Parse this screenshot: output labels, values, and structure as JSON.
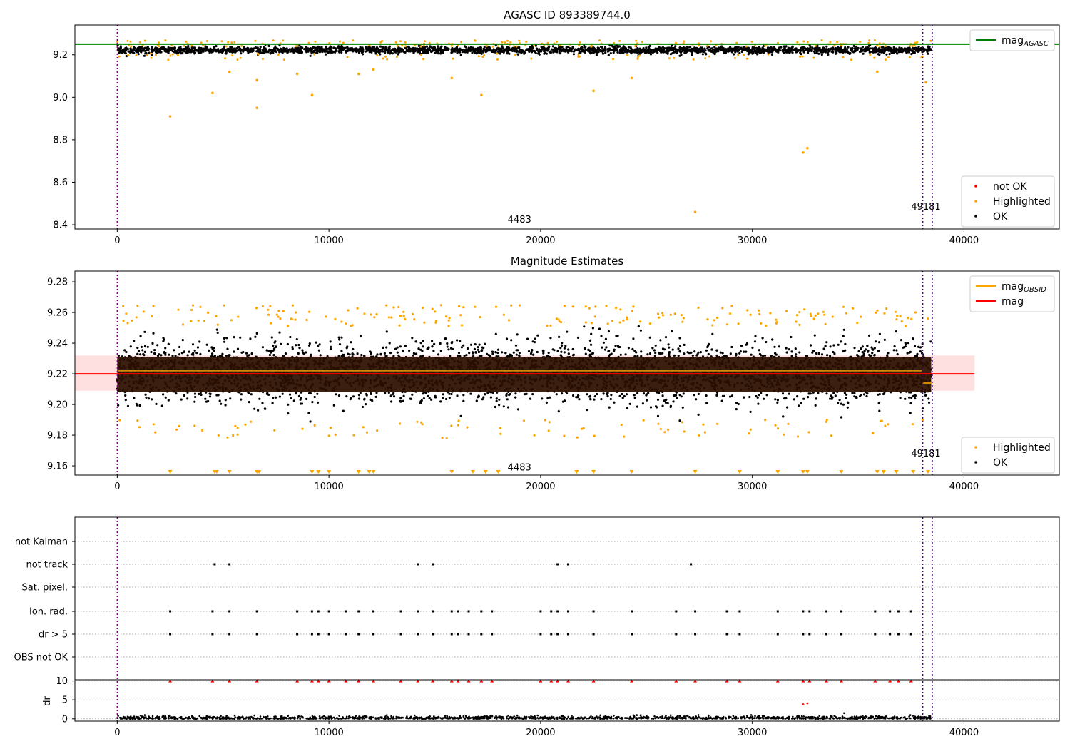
{
  "chart_data": [
    {
      "type": "scatter",
      "title": "AGASC ID 893389744.0",
      "xlim": [
        -2000,
        44500
      ],
      "ylim": [
        8.38,
        9.34
      ],
      "xticks": [
        0,
        10000,
        20000,
        30000,
        40000
      ],
      "yticks": [
        8.4,
        8.6,
        8.8,
        9.0,
        9.2
      ],
      "vlines": [
        0,
        38050,
        38500
      ],
      "hline": {
        "name": "mag_AGASC",
        "value": 9.25,
        "color": "#008000"
      },
      "annotations": [
        {
          "text": "4483",
          "x": 19000,
          "y": 8.41
        },
        {
          "text": "49181",
          "x": 38200,
          "y": 8.47
        }
      ],
      "legend_upper": [
        {
          "label": "mag",
          "sub": "AGASC",
          "color": "#008000",
          "kind": "line"
        }
      ],
      "legend_lower": [
        {
          "label": "not OK",
          "color": "#ff0000",
          "kind": "dot"
        },
        {
          "label": "Highlighted",
          "color": "#ffa500",
          "kind": "dot"
        },
        {
          "label": "OK",
          "color": "#000000",
          "kind": "dot"
        }
      ],
      "band_ok": {
        "center": 9.222,
        "halfwidth": 0.018
      },
      "outliers": [
        {
          "x": 2500,
          "y": 8.91
        },
        {
          "x": 4500,
          "y": 9.02
        },
        {
          "x": 6600,
          "y": 8.95
        },
        {
          "x": 6600,
          "y": 9.08
        },
        {
          "x": 9200,
          "y": 9.01
        },
        {
          "x": 17200,
          "y": 9.01
        },
        {
          "x": 22500,
          "y": 9.03
        },
        {
          "x": 24300,
          "y": 9.09
        },
        {
          "x": 27300,
          "y": 8.46
        },
        {
          "x": 32400,
          "y": 8.74
        },
        {
          "x": 32600,
          "y": 8.76
        },
        {
          "x": 15800,
          "y": 9.09
        },
        {
          "x": 5300,
          "y": 9.12
        },
        {
          "x": 8500,
          "y": 9.11
        },
        {
          "x": 11400,
          "y": 9.11
        },
        {
          "x": 12100,
          "y": 9.13
        },
        {
          "x": 35900,
          "y": 9.12
        },
        {
          "x": 38200,
          "y": 9.07
        }
      ]
    },
    {
      "type": "scatter",
      "title": "Magnitude Estimates",
      "xlim": [
        -2000,
        44500
      ],
      "ylim": [
        9.154,
        9.287
      ],
      "xticks": [
        0,
        10000,
        20000,
        30000,
        40000
      ],
      "yticks": [
        9.16,
        9.18,
        9.2,
        9.22,
        9.24,
        9.26,
        9.28
      ],
      "vlines": [
        0,
        38050,
        38500
      ],
      "mag_line": {
        "name": "mag",
        "value": 9.22,
        "color": "#ff0000",
        "band": [
          9.209,
          9.232
        ],
        "x_range": [
          -2000,
          40500
        ]
      },
      "mag_obsid": [
        {
          "x_range": [
            0,
            38000
          ],
          "value": 9.222
        },
        {
          "x_range": [
            38050,
            38500
          ],
          "value": 9.214
        }
      ],
      "annotations": [
        {
          "text": "4483",
          "x": 19000,
          "y": 9.157
        },
        {
          "text": "49181",
          "x": 38200,
          "y": 9.166
        }
      ],
      "legend_upper": [
        {
          "label": "mag",
          "sub": "OBSID",
          "color": "#ffa500",
          "kind": "line"
        },
        {
          "label": "mag",
          "sub": "",
          "color": "#ff0000",
          "kind": "line"
        }
      ],
      "legend_lower": [
        {
          "label": "Highlighted",
          "color": "#ffa500",
          "kind": "dot"
        },
        {
          "label": "OK",
          "color": "#000000",
          "kind": "dot"
        }
      ],
      "marker_row_x": [
        2500,
        4600,
        4700,
        5300,
        6600,
        6700,
        9200,
        9500,
        10000,
        11400,
        11900,
        12100,
        15800,
        16800,
        17400,
        18000,
        21700,
        22500,
        24300,
        27300,
        29400,
        31200,
        32400,
        32600,
        34200,
        35900,
        36200,
        36800,
        37600,
        38300
      ]
    },
    {
      "type": "scatter",
      "title": "",
      "xlim": [
        -2000,
        44500
      ],
      "xticks": [
        0,
        10000,
        20000,
        30000,
        40000
      ],
      "flag_rows": [
        "not Kalman",
        "not track",
        "Sat. pixel.",
        "Ion. rad.",
        "dr > 5",
        "OBS not OK"
      ],
      "flags": {
        "not track": [
          4600,
          5300,
          14200,
          14900,
          20800,
          21300,
          27100
        ],
        "Ion. rad.": [
          2500,
          4500,
          5300,
          6600,
          8500,
          9200,
          9500,
          10000,
          10800,
          11400,
          12100,
          13400,
          14200,
          14900,
          15800,
          16100,
          16600,
          17200,
          17700,
          20000,
          20500,
          20800,
          21300,
          22500,
          24300,
          26400,
          27300,
          28800,
          29400,
          31200,
          32400,
          32700,
          33500,
          34200,
          35800,
          36500,
          36900,
          37500
        ],
        "dr > 5": [
          2500,
          4500,
          5300,
          6600,
          8500,
          9200,
          9500,
          10000,
          10800,
          11400,
          12100,
          13400,
          14200,
          14900,
          15800,
          16100,
          16600,
          17200,
          17700,
          20000,
          20500,
          20800,
          21300,
          22500,
          24300,
          26400,
          27300,
          28800,
          29400,
          31200,
          32400,
          32700,
          33500,
          34200,
          35800,
          36500,
          36900,
          37500
        ]
      },
      "dr_ylabel": "dr",
      "dr_yticks": [
        0,
        5,
        10
      ],
      "dr_ylim": [
        -0.6,
        10.3
      ]
    }
  ],
  "colors": {
    "ok": "#000000",
    "highlighted": "#ffa500",
    "not_ok": "#ff0000",
    "vline": "#4b0082",
    "agasc": "#008000",
    "mag": "#ff0000"
  }
}
